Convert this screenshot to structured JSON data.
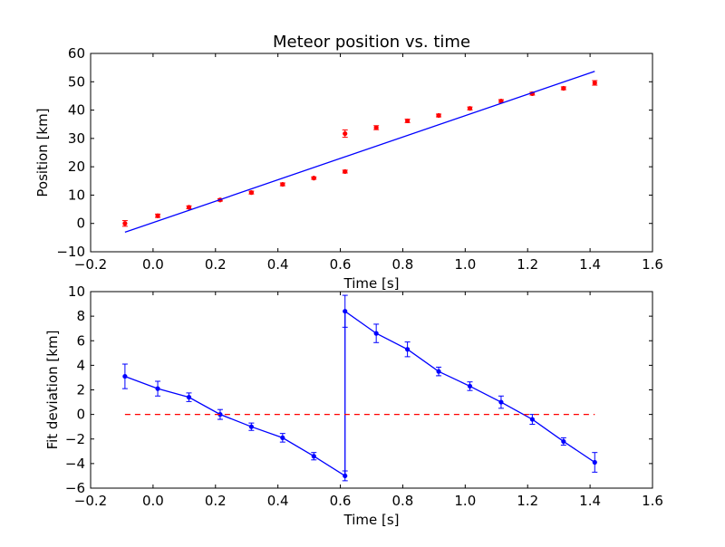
{
  "colors": {
    "data_points": "#ff0000",
    "fit_line": "#0000ff",
    "deviation_series": "#0000ff",
    "zero_line": "#ff0000",
    "axes": "#000000"
  },
  "chart_data": [
    {
      "type": "scatter",
      "title": "Meteor position vs. time",
      "xlabel": "Time [s]",
      "ylabel": "Position [km]",
      "xlim": [
        -0.2,
        1.6
      ],
      "ylim": [
        -10,
        60
      ],
      "xticks": [
        -0.2,
        0.0,
        0.2,
        0.4,
        0.6,
        0.8,
        1.0,
        1.2,
        1.4,
        1.6
      ],
      "xtick_labels": [
        "−0.2",
        "0.0",
        "0.2",
        "0.4",
        "0.6",
        "0.8",
        "1.0",
        "1.2",
        "1.4",
        "1.6"
      ],
      "yticks": [
        -10,
        0,
        10,
        20,
        30,
        40,
        50,
        60
      ],
      "ytick_labels": [
        "−10",
        "0",
        "10",
        "20",
        "30",
        "40",
        "50",
        "60"
      ],
      "grid": false,
      "series": [
        {
          "kind": "errorbar-points",
          "color": "#ff0000",
          "x": [
            -0.09,
            0.015,
            0.115,
            0.215,
            0.315,
            0.415,
            0.515,
            0.615,
            0.615,
            0.715,
            0.815,
            0.915,
            1.015,
            1.115,
            1.215,
            1.315,
            1.415
          ],
          "y": [
            0.0,
            2.7,
            5.7,
            8.3,
            10.9,
            13.8,
            16.0,
            18.3,
            31.7,
            33.8,
            36.2,
            38.1,
            40.6,
            43.2,
            45.8,
            47.7,
            49.6
          ],
          "yerr": [
            1.0,
            0.6,
            0.5,
            0.4,
            0.5,
            0.5,
            0.4,
            0.5,
            1.3,
            0.7,
            0.6,
            0.5,
            0.5,
            0.5,
            0.5,
            0.5,
            0.8
          ]
        },
        {
          "kind": "line",
          "color": "#0000ff",
          "x": [
            -0.09,
            1.415
          ],
          "y": [
            -3.1,
            53.7
          ]
        }
      ]
    },
    {
      "type": "line",
      "title": "",
      "xlabel": "Time [s]",
      "ylabel": "Fit deviation [km]",
      "xlim": [
        -0.2,
        1.6
      ],
      "ylim": [
        -6,
        10
      ],
      "xticks": [
        -0.2,
        0.0,
        0.2,
        0.4,
        0.6,
        0.8,
        1.0,
        1.2,
        1.4,
        1.6
      ],
      "xtick_labels": [
        "−0.2",
        "0.0",
        "0.2",
        "0.4",
        "0.6",
        "0.8",
        "1.0",
        "1.2",
        "1.4",
        "1.6"
      ],
      "yticks": [
        -6,
        -4,
        -2,
        0,
        2,
        4,
        6,
        8,
        10
      ],
      "ytick_labels": [
        "−6",
        "−4",
        "−2",
        "0",
        "2",
        "4",
        "6",
        "8",
        "10"
      ],
      "grid": false,
      "series": [
        {
          "kind": "errorbar-line",
          "color": "#0000ff",
          "x": [
            -0.09,
            0.015,
            0.115,
            0.215,
            0.315,
            0.415,
            0.515,
            0.615,
            0.615,
            0.715,
            0.815,
            0.915,
            1.015,
            1.115,
            1.215,
            1.315,
            1.415
          ],
          "y": [
            3.1,
            2.1,
            1.4,
            0.0,
            -1.0,
            -1.9,
            -3.4,
            -5.0,
            8.4,
            6.6,
            5.3,
            3.5,
            2.3,
            1.0,
            -0.4,
            -2.2,
            -3.9
          ],
          "yerr": [
            1.0,
            0.6,
            0.35,
            0.4,
            0.3,
            0.35,
            0.3,
            0.4,
            1.3,
            0.75,
            0.6,
            0.35,
            0.35,
            0.5,
            0.4,
            0.3,
            0.8
          ]
        },
        {
          "kind": "dashed-line",
          "color": "#ff0000",
          "x": [
            -0.09,
            1.415
          ],
          "y": [
            0,
            0
          ]
        }
      ]
    }
  ]
}
